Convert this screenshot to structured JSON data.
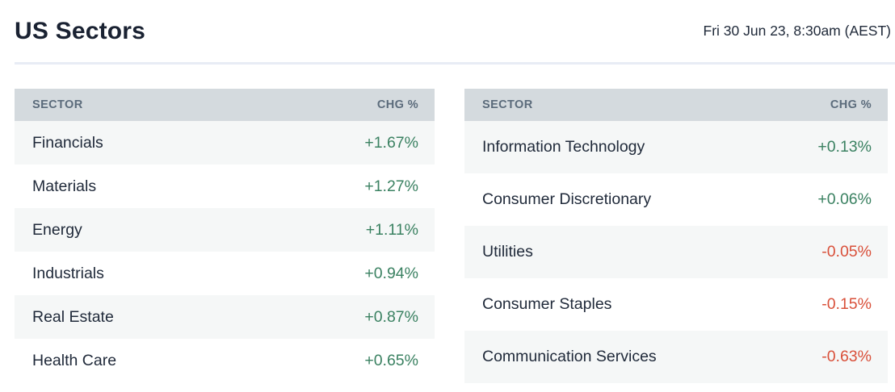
{
  "header": {
    "title": "US Sectors",
    "timestamp": "Fri 30 Jun 23, 8:30am (AEST)"
  },
  "colors": {
    "title": "#1a2232",
    "text": "#202a3a",
    "divider": "#e8ecf5",
    "header_bg": "#d4dade",
    "header_text": "#5b6b7b",
    "stripe_bg": "#f5f7f7",
    "positive": "#3a8161",
    "negative": "#d9503a"
  },
  "tables": [
    {
      "columns": [
        "SECTOR",
        "CHG %"
      ],
      "rows": [
        {
          "sector": "Financials",
          "change": "+1.67%"
        },
        {
          "sector": "Materials",
          "change": "+1.27%"
        },
        {
          "sector": "Energy",
          "change": "+1.11%"
        },
        {
          "sector": "Industrials",
          "change": "+0.94%"
        },
        {
          "sector": "Real Estate",
          "change": "+0.87%"
        },
        {
          "sector": "Health Care",
          "change": "+0.65%"
        }
      ]
    },
    {
      "columns": [
        "SECTOR",
        "CHG %"
      ],
      "rows": [
        {
          "sector": "Information Technology",
          "change": "+0.13%"
        },
        {
          "sector": "Consumer Discretionary",
          "change": "+0.06%"
        },
        {
          "sector": "Utilities",
          "change": "-0.05%"
        },
        {
          "sector": "Consumer Staples",
          "change": "-0.15%"
        },
        {
          "sector": "Communication Services",
          "change": "-0.63%"
        }
      ]
    }
  ]
}
